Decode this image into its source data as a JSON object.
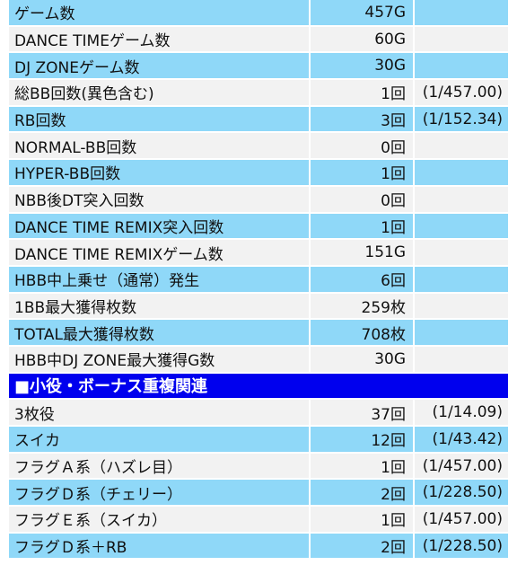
{
  "colors": {
    "row_blue": "#8fd8f8",
    "row_gray": "#f2f2f2",
    "section_header": "#0000ee"
  },
  "rows_top": [
    {
      "label": "ゲーム数",
      "value": "457G",
      "ratio": "",
      "tone": "blue"
    },
    {
      "label": "DANCE TIMEゲーム数",
      "value": "60G",
      "ratio": "",
      "tone": "gray"
    },
    {
      "label": "DJ ZONEゲーム数",
      "value": "30G",
      "ratio": "",
      "tone": "blue"
    },
    {
      "label": "総BB回数(異色含む)",
      "value": "1回",
      "ratio": "(1/457.00)",
      "tone": "gray"
    },
    {
      "label": "RB回数",
      "value": "3回",
      "ratio": "(1/152.34)",
      "tone": "blue"
    },
    {
      "label": "NORMAL-BB回数",
      "value": "0回",
      "ratio": "",
      "tone": "gray"
    },
    {
      "label": "HYPER-BB回数",
      "value": "1回",
      "ratio": "",
      "tone": "blue"
    },
    {
      "label": "NBB後DT突入回数",
      "value": "0回",
      "ratio": "",
      "tone": "gray"
    },
    {
      "label": "DANCE TIME REMIX突入回数",
      "value": "1回",
      "ratio": "",
      "tone": "blue"
    },
    {
      "label": "DANCE TIME REMIXゲーム数",
      "value": "151G",
      "ratio": "",
      "tone": "gray"
    },
    {
      "label": "HBB中上乗せ（通常）発生",
      "value": "6回",
      "ratio": "",
      "tone": "blue"
    },
    {
      "label": "1BB最大獲得枚数",
      "value": "259枚",
      "ratio": "",
      "tone": "gray"
    },
    {
      "label": "TOTAL最大獲得枚数",
      "value": "708枚",
      "ratio": "",
      "tone": "blue"
    },
    {
      "label": "HBB中DJ ZONE最大獲得G数",
      "value": "30G",
      "ratio": "",
      "tone": "gray"
    }
  ],
  "section_title": "■小役・ボーナス重複関連",
  "rows_bottom": [
    {
      "label": "3枚役",
      "value": "37回",
      "ratio": "(1/14.09)",
      "tone": "gray"
    },
    {
      "label": "スイカ",
      "value": "12回",
      "ratio": "(1/43.42)",
      "tone": "blue"
    },
    {
      "label": "フラグＡ系（ハズレ目）",
      "value": "1回",
      "ratio": "(1/457.00)",
      "tone": "gray"
    },
    {
      "label": "フラグＤ系（チェリー）",
      "value": "2回",
      "ratio": "(1/228.50)",
      "tone": "blue"
    },
    {
      "label": "フラグＥ系（スイカ）",
      "value": "1回",
      "ratio": "(1/457.00)",
      "tone": "gray"
    },
    {
      "label": "フラグＤ系＋RB",
      "value": "2回",
      "ratio": "(1/228.50)",
      "tone": "blue"
    }
  ]
}
